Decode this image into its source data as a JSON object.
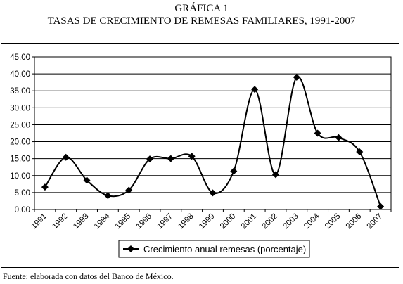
{
  "header": {
    "title": "GRÁFICA 1",
    "subtitle": "TASAS DE CRECIMIENTO DE REMESAS FAMILIARES, 1991-2007"
  },
  "footer": {
    "source": "Fuente: elaborada con datos del Banco de México."
  },
  "chart_data": {
    "type": "line",
    "title": "GRÁFICA 1",
    "subtitle": "TASAS DE CRECIMIENTO DE REMESAS FAMILIARES, 1991-2007",
    "xlabel": "",
    "ylabel": "",
    "categories": [
      "1991",
      "1992",
      "1993",
      "1994",
      "1995",
      "1996",
      "1997",
      "1998",
      "1999",
      "2000",
      "2001",
      "2002",
      "2003",
      "2004",
      "2005",
      "2006",
      "2007"
    ],
    "series": [
      {
        "name": "Crecimiento anual remesas (porcentaje)",
        "values": [
          6.6,
          15.4,
          8.6,
          4.1,
          5.7,
          14.9,
          15.0,
          15.7,
          4.9,
          11.3,
          35.4,
          10.3,
          39.0,
          22.5,
          21.2,
          17.0,
          0.9
        ],
        "color": "#000000",
        "marker": "diamond",
        "smooth": true
      }
    ],
    "ylim": [
      0,
      45
    ],
    "yticks": [
      "0.00",
      "5.00",
      "10.00",
      "15.00",
      "20.00",
      "25.00",
      "30.00",
      "35.00",
      "40.00",
      "45.00"
    ],
    "ytick_values": [
      0,
      5,
      10,
      15,
      20,
      25,
      30,
      35,
      40,
      45
    ],
    "grid": true,
    "legend": "bottom"
  }
}
